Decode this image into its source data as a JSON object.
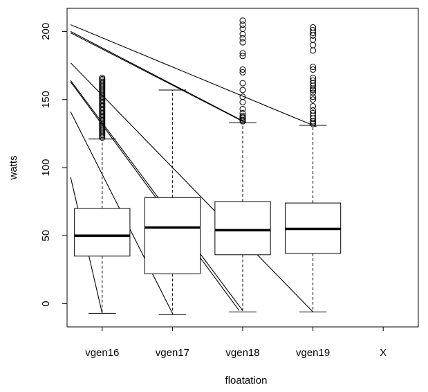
{
  "chart_data": {
    "type": "box",
    "xlabel": "floatation",
    "ylabel": "watts",
    "categories": [
      "vgen16",
      "vgen17",
      "vgen18",
      "vgen19",
      "X"
    ],
    "ylim": [
      -17,
      217
    ],
    "yticks": [
      0,
      50,
      100,
      150,
      200
    ],
    "ytick_labels": [
      "0",
      "50",
      "100",
      "150",
      "200"
    ],
    "grid": false,
    "boxes": [
      {
        "category": "vgen16",
        "whisker_low": -7,
        "q1": 35,
        "median": 50,
        "q3": 70,
        "whisker_high": 121,
        "outliers": [
          122,
          123,
          124,
          125,
          126,
          127,
          128,
          129,
          130,
          131,
          132,
          133,
          134,
          135,
          136,
          137,
          138,
          139,
          140,
          141,
          142,
          143,
          144,
          145,
          146,
          147,
          148,
          149,
          150,
          151,
          152,
          153,
          154,
          155,
          156,
          157,
          158,
          159,
          160,
          161,
          162,
          163,
          164,
          165,
          166
        ]
      },
      {
        "category": "vgen17",
        "whisker_low": -8,
        "q1": 22,
        "median": 56,
        "q3": 78,
        "whisker_high": 157,
        "outliers": []
      },
      {
        "category": "vgen18",
        "whisker_low": -6,
        "q1": 36,
        "median": 54,
        "q3": 75,
        "whisker_high": 133,
        "outliers": [
          134,
          135,
          136,
          137,
          138,
          140,
          143,
          148,
          152,
          157,
          162,
          170,
          172,
          182,
          184,
          192,
          195,
          198,
          202,
          205,
          208
        ]
      },
      {
        "category": "vgen19",
        "whisker_low": -6,
        "q1": 37,
        "median": 55,
        "q3": 74,
        "whisker_high": 131,
        "outliers": [
          132,
          133,
          134,
          136,
          138,
          140,
          142,
          145,
          150,
          152,
          155,
          157,
          158,
          160,
          162,
          164,
          166,
          172,
          174,
          186,
          190,
          194,
          197,
          199,
          201,
          203
        ]
      },
      {
        "category": "X",
        "empty": true
      }
    ],
    "lines": [
      {
        "from": [
          0.55,
          205
        ],
        "to": [
          4.05,
          130
        ]
      },
      {
        "from": [
          0.55,
          200
        ],
        "to": [
          3.05,
          133
        ]
      },
      {
        "from": [
          0.55,
          199
        ],
        "to": [
          3.0,
          134
        ]
      },
      {
        "from": [
          0.55,
          177
        ],
        "to": [
          4.0,
          -6
        ]
      },
      {
        "from": [
          0.55,
          164
        ],
        "to": [
          3.0,
          -5
        ]
      },
      {
        "from": [
          0.55,
          163
        ],
        "to": [
          2.95,
          -5
        ]
      },
      {
        "from": [
          0.55,
          141
        ],
        "to": [
          2.0,
          -7
        ]
      },
      {
        "from": [
          0.55,
          93
        ],
        "to": [
          1.0,
          -7
        ]
      }
    ]
  }
}
